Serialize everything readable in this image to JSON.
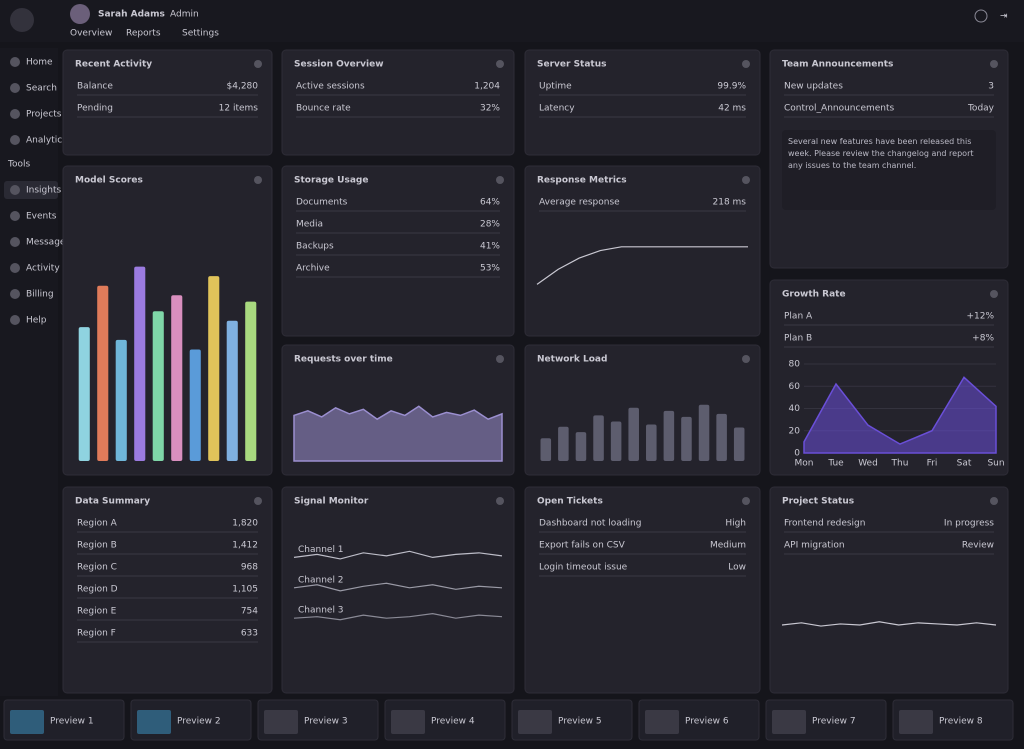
{
  "header": {
    "user": "Sarah Adams",
    "role": "Admin",
    "tabs": [
      "Overview",
      "Reports",
      "Settings"
    ]
  },
  "sidebar": {
    "items": [
      "Home",
      "Search",
      "Projects",
      "Analytics"
    ],
    "section": "Tools",
    "items2": [
      "Insights",
      "Events",
      "Messages",
      "Activity",
      "Billing",
      "Help"
    ]
  },
  "panels": [
    {
      "title": "Recent Activity",
      "items": [
        {
          "label": "Balance",
          "value": "$4,280"
        },
        {
          "label": "Pending",
          "value": "12 items"
        }
      ]
    },
    {
      "title": "Session Overview",
      "items": [
        {
          "label": "Active sessions",
          "value": "1,204"
        },
        {
          "label": "Bounce rate",
          "value": "32%"
        }
      ]
    },
    {
      "title": "Server Status",
      "items": [
        {
          "label": "Uptime",
          "value": "99.9%"
        },
        {
          "label": "Latency",
          "value": "42 ms"
        }
      ]
    },
    {
      "title": "Team Announcements",
      "items": [
        {
          "label": "New updates",
          "value": "3"
        },
        {
          "label": "Control_Announcements",
          "value": "Today"
        }
      ],
      "note": "Several new features have been released this week. Please review the changelog and report any issues to the team channel."
    },
    {
      "title": "Model Scores",
      "items": [],
      "chart": {
        "type": "bar",
        "values": [
          42,
          55,
          38,
          61,
          47,
          52,
          35,
          58,
          44,
          50
        ],
        "colors": [
          "#8fd3e0",
          "#e07b5a",
          "#6fb6d9",
          "#9b7be0",
          "#7fd6a8",
          "#d98fbf",
          "#5a9bd9",
          "#e0c35a",
          "#7fb0e0",
          "#a8d97f"
        ],
        "ylim": [
          0,
          80
        ]
      }
    },
    {
      "title": "Storage Usage",
      "items": [
        {
          "label": "Documents",
          "value": "64%"
        },
        {
          "label": "Media",
          "value": "28%"
        },
        {
          "label": "Backups",
          "value": "41%"
        },
        {
          "label": "Archive",
          "value": "53%"
        }
      ]
    },
    {
      "title": "Response Metrics",
      "items": [
        {
          "label": "Average response",
          "value": "218 ms"
        }
      ],
      "chart": {
        "type": "line",
        "values": [
          20,
          28,
          34,
          38,
          40,
          40,
          40,
          40,
          40,
          40,
          40
        ],
        "color": "#c9c8d2",
        "ylim": [
          0,
          50
        ]
      }
    },
    {
      "title": "Requests over time",
      "items": [],
      "chart": {
        "type": "area",
        "values": [
          60,
          66,
          58,
          70,
          62,
          68,
          55,
          66,
          60,
          72,
          58,
          64,
          60,
          67,
          55,
          62
        ],
        "color": "#9b8fd0",
        "ylim": [
          0,
          100
        ]
      }
    },
    {
      "title": "Network Load",
      "items": [],
      "chart": {
        "type": "bar",
        "values": [
          30,
          45,
          38,
          60,
          52,
          70,
          48,
          66,
          58,
          74,
          62,
          44
        ],
        "colors": [
          "#5d5d6e"
        ],
        "ylim": [
          0,
          100
        ]
      }
    },
    {
      "title": "Growth Rate",
      "items": [
        {
          "label": "Plan A",
          "value": "+12%"
        },
        {
          "label": "Plan B",
          "value": "+8%"
        }
      ],
      "chart": {
        "type": "area",
        "categories": [
          "Mon",
          "Tue",
          "Wed",
          "Thu",
          "Fri",
          "Sat",
          "Sun"
        ],
        "values": [
          10,
          62,
          25,
          8,
          20,
          68,
          42
        ],
        "color": "#6a4fd8",
        "ylim": [
          0,
          80
        ],
        "yticks": [
          0,
          20,
          40,
          60,
          80
        ]
      }
    },
    {
      "title": "Data Summary",
      "items": [
        {
          "label": "Region A",
          "value": "1,820"
        },
        {
          "label": "Region B",
          "value": "1,412"
        },
        {
          "label": "Region C",
          "value": "968"
        },
        {
          "label": "Region D",
          "value": "1,105"
        },
        {
          "label": "Region E",
          "value": "754"
        },
        {
          "label": "Region F",
          "value": "633"
        }
      ]
    },
    {
      "title": "Signal Monitor",
      "items": [],
      "chart": {
        "type": "line",
        "ylim": [
          0,
          100
        ],
        "series": [
          {
            "name": "Channel 1",
            "color": "#bdbdc8",
            "values": [
              80,
              82,
              79,
              83,
              81,
              84,
              80,
              82,
              83,
              81
            ]
          },
          {
            "name": "Channel 2",
            "color": "#9a9aa6",
            "values": [
              60,
              62,
              58,
              61,
              63,
              60,
              62,
              59,
              61,
              60
            ]
          },
          {
            "name": "Channel 3",
            "color": "#8a8a96",
            "values": [
              40,
              41,
              39,
              42,
              40,
              41,
              43,
              40,
              42,
              41
            ]
          }
        ]
      }
    },
    {
      "title": "Open Tickets",
      "items": [
        {
          "label": "Dashboard not loading",
          "value": "High"
        },
        {
          "label": "Export fails on CSV",
          "value": "Medium"
        },
        {
          "label": "Login timeout issue",
          "value": "Low"
        }
      ]
    },
    {
      "title": "Project Status",
      "items": [
        {
          "label": "Frontend redesign",
          "value": "In progress"
        },
        {
          "label": "API migration",
          "value": "Review"
        }
      ],
      "chart": {
        "type": "line",
        "values": [
          50,
          52,
          49,
          51,
          50,
          53,
          50,
          52,
          51,
          50,
          52,
          50
        ],
        "color": "#c9c8d2",
        "ylim": [
          0,
          100
        ]
      }
    }
  ],
  "footer": [
    "Preview 1",
    "Preview 2",
    "Preview 3",
    "Preview 4",
    "Preview 5",
    "Preview 6",
    "Preview 7",
    "Preview 8"
  ]
}
